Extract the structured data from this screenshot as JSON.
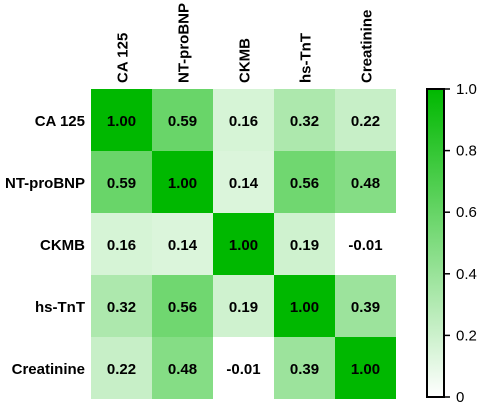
{
  "chart_data": {
    "type": "heatmap",
    "title": "",
    "xlabel": "",
    "ylabel": "",
    "x_categories": [
      "CA 125",
      "NT-proBNP",
      "CKMB",
      "hs-TnT",
      "Creatinine"
    ],
    "y_categories": [
      "CA 125",
      "NT-proBNP",
      "CKMB",
      "hs-TnT",
      "Creatinine"
    ],
    "values": [
      [
        1.0,
        0.59,
        0.16,
        0.32,
        0.22
      ],
      [
        0.59,
        1.0,
        0.14,
        0.56,
        0.48
      ],
      [
        0.16,
        0.14,
        1.0,
        0.19,
        -0.01
      ],
      [
        0.32,
        0.56,
        0.19,
        1.0,
        0.39
      ],
      [
        0.22,
        0.48,
        -0.01,
        0.39,
        1.0
      ]
    ],
    "cell_labels": [
      [
        "1.00",
        "0.59",
        "0.16",
        "0.32",
        "0.22"
      ],
      [
        "0.59",
        "1.00",
        "0.14",
        "0.56",
        "0.48"
      ],
      [
        "0.16",
        "0.14",
        "1.00",
        "0.19",
        "-0.01"
      ],
      [
        "0.32",
        "0.56",
        "0.19",
        "1.00",
        "0.39"
      ],
      [
        "0.22",
        "0.48",
        "-0.01",
        "0.39",
        "1.00"
      ]
    ],
    "color_scale": {
      "min": 0,
      "max": 1,
      "low_color": "#ffffff",
      "high_color": "#00b800"
    },
    "colorbar": {
      "ticks": [
        "0",
        "0.2",
        "0.4",
        "0.6",
        "0.8",
        "1.0"
      ],
      "tick_values": [
        0,
        0.2,
        0.4,
        0.6,
        0.8,
        1.0
      ]
    },
    "x_tick_rotation": "vertical",
    "legend_placement": "right"
  }
}
